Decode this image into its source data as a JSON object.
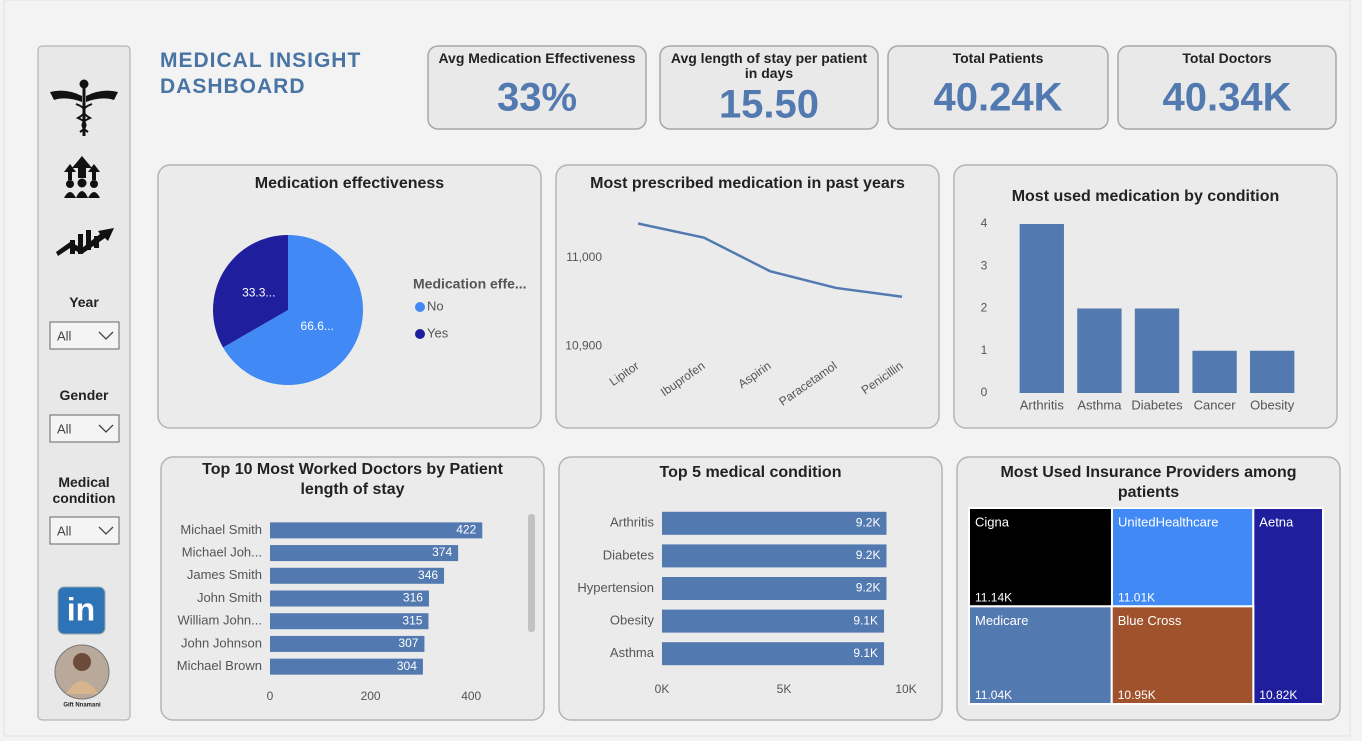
{
  "header": {
    "title": "MEDICAL INSIGHT DASHBOARD"
  },
  "kpis": [
    {
      "label": "Avg Medication Effectiveness",
      "value": "33%"
    },
    {
      "label": "Avg length of stay per patient in days",
      "value": "15.50"
    },
    {
      "label": "Total Patients",
      "value": "40.24K"
    },
    {
      "label": "Total Doctors",
      "value": "40.34K"
    }
  ],
  "filters": [
    {
      "label": "Year",
      "value": "All"
    },
    {
      "label": "Gender",
      "value": "All"
    },
    {
      "label": "Medical condition",
      "value": "All"
    }
  ],
  "sidebar": {
    "logo_text": "in",
    "caption": "Gift Nnamani"
  },
  "chart_data": [
    {
      "type": "pie",
      "title": "Medication effectiveness",
      "legend_title": "Medication effe...",
      "categories": [
        "No",
        "Yes"
      ],
      "values": [
        66.6,
        33.3
      ],
      "value_labels": [
        "66.6...",
        "33.3..."
      ],
      "colors": [
        "#418af5",
        "#1f1f9e"
      ]
    },
    {
      "type": "line",
      "title": "Most prescribed medication in past years",
      "categories": [
        "Lipitor",
        "Ibuprofen",
        "Aspirin",
        "Paracetamol",
        "Penicillin"
      ],
      "values": [
        11039,
        11023,
        10985,
        10966,
        10956
      ],
      "color": "#5279b0",
      "ylim": [
        10890,
        11060
      ],
      "yticks": [
        {
          "value": 10900,
          "label": "10,900"
        },
        {
          "value": 11000,
          "label": "11,000"
        }
      ]
    },
    {
      "type": "bar",
      "title": "Most used medication by condition",
      "categories": [
        "Arthritis",
        "Asthma",
        "Diabetes",
        "Cancer",
        "Obesity"
      ],
      "values": [
        4,
        2,
        2,
        1,
        1
      ],
      "color": "#5279b0",
      "ylim": [
        0,
        4
      ],
      "yticks": [
        0,
        1,
        2,
        3,
        4
      ]
    },
    {
      "type": "hbar",
      "title": "Top 10 Most Worked Doctors by Patient length of stay",
      "categories": [
        "Michael Smith",
        "Michael Joh...",
        "James Smith",
        "John Smith",
        "William John...",
        "John Johnson",
        "Michael Brown"
      ],
      "values": [
        422,
        374,
        346,
        316,
        315,
        307,
        304
      ],
      "color": "#5279b0",
      "xlim": [
        0,
        495
      ],
      "xticks": [
        0,
        200,
        400
      ]
    },
    {
      "type": "hbar",
      "title": "Top 5 medical condition",
      "categories": [
        "Arthritis",
        "Diabetes",
        "Hypertension",
        "Obesity",
        "Asthma"
      ],
      "values": [
        9200,
        9200,
        9200,
        9100,
        9100
      ],
      "value_labels": [
        "9.2K",
        "9.2K",
        "9.2K",
        "9.1K",
        "9.1K"
      ],
      "color": "#5279b0",
      "xlim": [
        0,
        10000
      ],
      "xticks": [
        {
          "value": 0,
          "label": "0K"
        },
        {
          "value": 5000,
          "label": "5K"
        },
        {
          "value": 10000,
          "label": "10K"
        }
      ]
    },
    {
      "type": "treemap",
      "title": "Most Used Insurance Providers among patients",
      "categories": [
        "Cigna",
        "UnitedHealthcare",
        "Aetna",
        "Medicare",
        "Blue Cross"
      ],
      "values": [
        11140,
        11010,
        10820,
        11040,
        10950
      ],
      "value_labels": [
        "11.14K",
        "11.01K",
        "10.82K",
        "11.04K",
        "10.95K"
      ],
      "colors": [
        "#000000",
        "#418af5",
        "#1f1f9e",
        "#5279b0",
        "#a0522d"
      ]
    }
  ]
}
